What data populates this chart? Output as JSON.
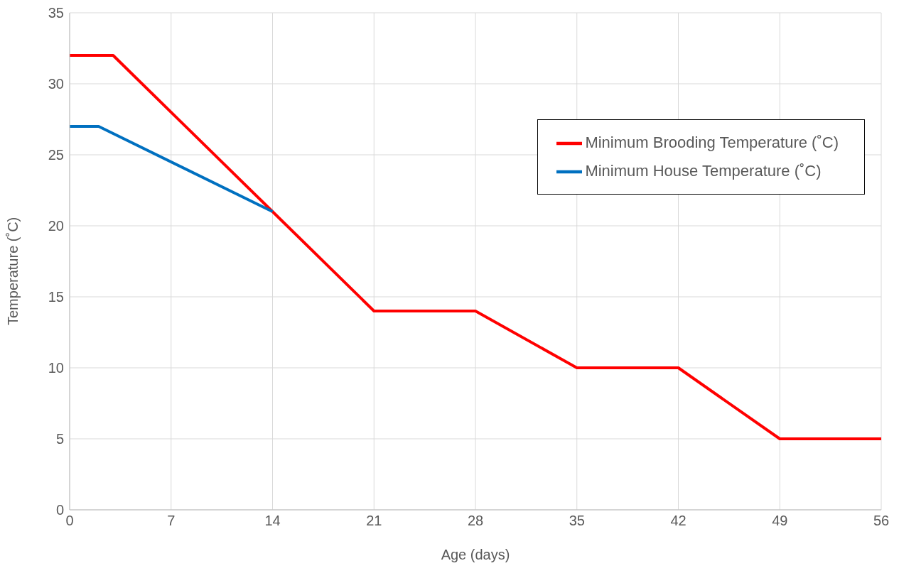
{
  "chart_data": {
    "type": "line",
    "xlabel": "Age (days)",
    "ylabel": "Temperature (˚C)",
    "xlim": [
      0,
      56
    ],
    "xticks": [
      0,
      7,
      14,
      21,
      28,
      35,
      42,
      49,
      56
    ],
    "ylim": [
      0,
      35
    ],
    "yticks": [
      0,
      5,
      10,
      15,
      20,
      25,
      30,
      35
    ],
    "grid": true,
    "legend": "top right",
    "marker": "none",
    "line_style": "solid",
    "series": [
      {
        "name": "Minimum Brooding Temperature (˚C)",
        "color": "#ff0000",
        "x": [
          0,
          3,
          14,
          21,
          28,
          35,
          42,
          49,
          56
        ],
        "values": [
          32,
          32,
          21,
          14,
          14,
          10,
          10,
          5,
          5
        ]
      },
      {
        "name": "Minimum House Temperature (˚C)",
        "color": "#0070c0",
        "x": [
          0,
          2,
          14
        ],
        "values": [
          27,
          27,
          21
        ]
      }
    ]
  }
}
